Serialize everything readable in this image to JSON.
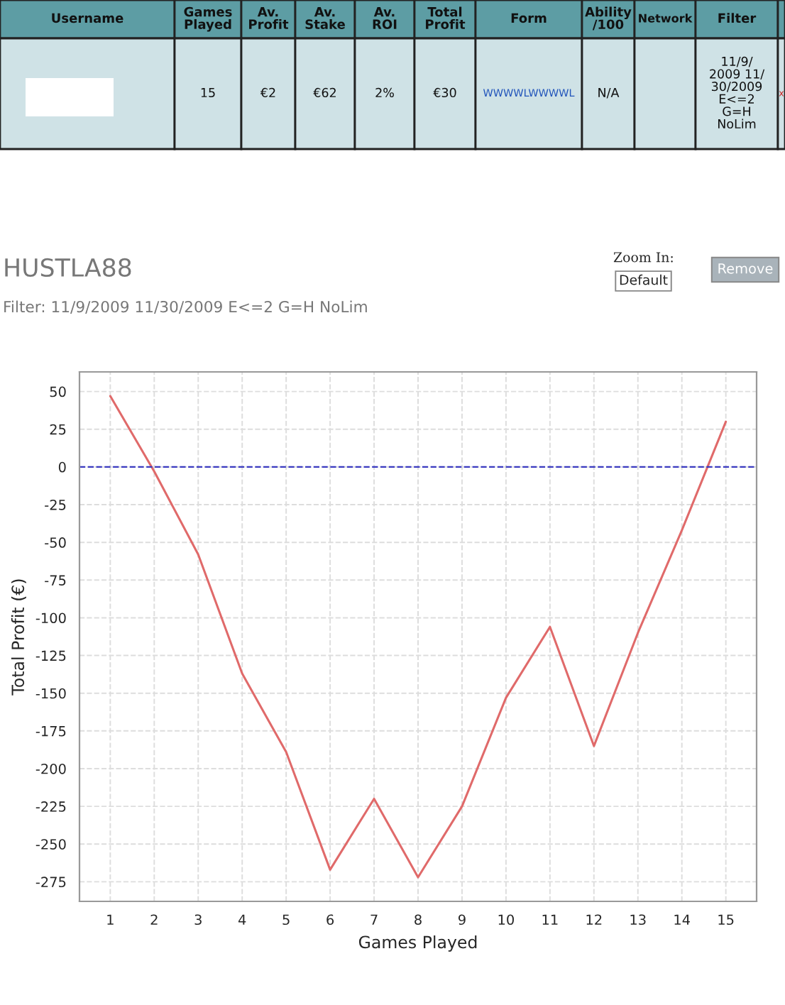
{
  "chart_data": [
    {
      "type": "other",
      "categories": [
        "Username",
        "Games\nPlayed",
        "Av.\nProfit",
        "Av.\nStake",
        "Av.\nROI",
        "Total\nProfit",
        "Form",
        "Ability\n/100",
        "Network",
        "Filter",
        null
      ],
      "cell_labels": [
        [
          null,
          "15",
          "€2",
          "€62",
          "2%",
          "€30",
          "WWWWLWWWWL",
          "N/A",
          null,
          "11/9/\n2009 11/\n30/2009\nE<=2\nG=H\nNoLim",
          "x"
        ]
      ]
    },
    {
      "type": "line",
      "title": "HUSTLA88",
      "subtitle": "Filter: 11/9/2009 11/30/2009 E<=2 G=H NoLim",
      "xlabel": "Games Played",
      "ylabel": "Total Profit (€)",
      "x": [
        1,
        2,
        3,
        4,
        5,
        6,
        7,
        8,
        9,
        10,
        11,
        12,
        13,
        14,
        15
      ],
      "series": [
        {
          "color": "#e06a6a",
          "values": [
            47,
            -3,
            -58,
            -137,
            -189,
            -267,
            -220,
            -272,
            -225,
            -153,
            -106,
            -185,
            -110,
            -42,
            30
          ]
        }
      ],
      "xlim": [
        0.3,
        15.7
      ],
      "xticks": [
        1,
        2,
        3,
        4,
        5,
        6,
        7,
        8,
        9,
        10,
        11,
        12,
        13,
        14,
        15
      ],
      "ylim": [
        -288,
        63
      ],
      "yticks": [
        50,
        25,
        0,
        -25,
        -50,
        -75,
        -100,
        -125,
        -150,
        -175,
        -200,
        -225,
        -250,
        -275
      ],
      "ref_lines": [
        {
          "axis": "y",
          "value": 0,
          "color": "#3a3ac0",
          "line_style": "dashed"
        }
      ],
      "grid": true,
      "marker": "none",
      "line_style": "solid",
      "legend": false,
      "annotations": [
        "Zoom In:",
        "Default",
        "Remove"
      ]
    }
  ]
}
